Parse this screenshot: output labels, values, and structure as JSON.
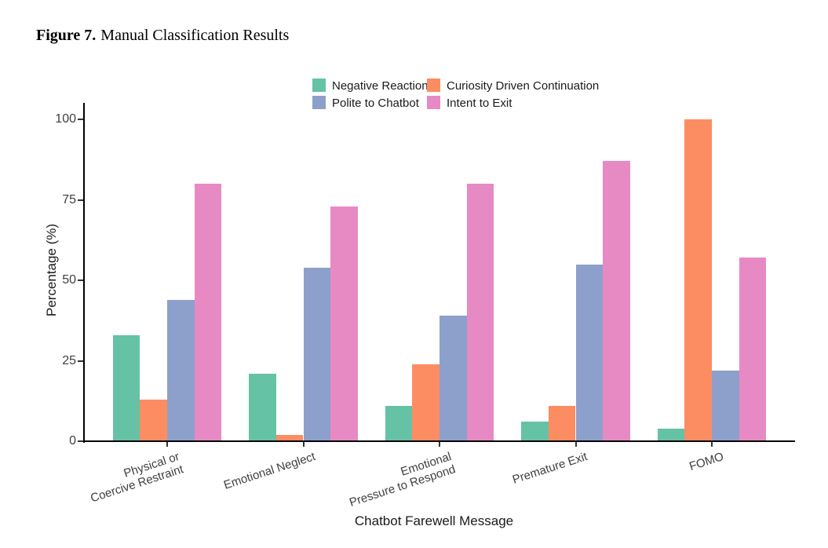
{
  "figure": {
    "title_prefix": "Figure 7.",
    "title": "Manual Classification Results"
  },
  "chart_data": {
    "type": "bar",
    "title": "Figure 7. Manual Classification Results",
    "xlabel": "Chatbot Farewell Message",
    "ylabel": "Percentage (%)",
    "ylim": [
      0,
      100
    ],
    "yticks": [
      0,
      25,
      50,
      75,
      100
    ],
    "grid": false,
    "legend_position": "top",
    "legend_order": [
      "Negative Reaction",
      "Polite to Chatbot",
      "Curiosity Driven Continuation",
      "Intent to Exit"
    ],
    "categories": [
      "Physical or\nCoercive Restraint",
      "Emotional Neglect",
      "Emotional\nPressure to Respond",
      "Premature Exit",
      "FOMO"
    ],
    "series": [
      {
        "name": "Negative Reaction",
        "color": "#66C2A5",
        "values": [
          33,
          21,
          11,
          6,
          4
        ]
      },
      {
        "name": "Curiosity Driven Continuation",
        "color": "#FC8D62",
        "values": [
          13,
          2,
          24,
          11,
          100
        ]
      },
      {
        "name": "Polite to Chatbot",
        "color": "#8DA0CB",
        "values": [
          44,
          54,
          39,
          55,
          22
        ]
      },
      {
        "name": "Intent to Exit",
        "color": "#E78AC3",
        "values": [
          80,
          73,
          80,
          87,
          57
        ]
      }
    ]
  }
}
